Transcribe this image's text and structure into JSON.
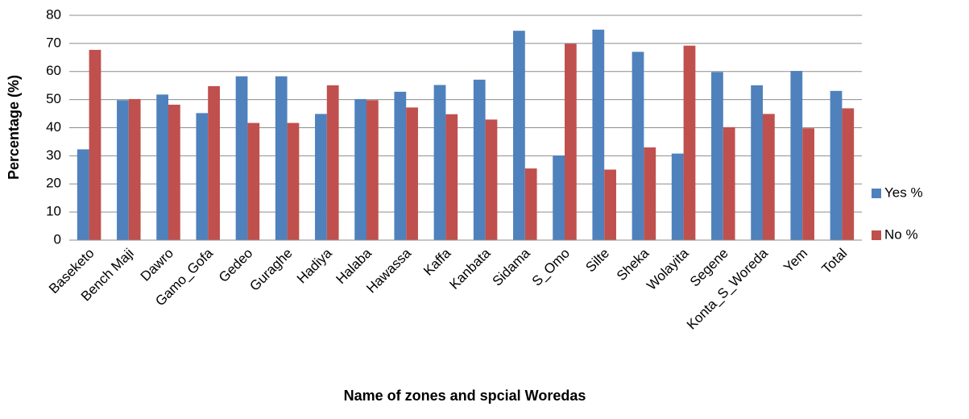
{
  "chart_data": {
    "type": "bar",
    "x_label": "Name of zones and spcial Woredas",
    "y_label": "Percentage (%)",
    "categories": [
      "Baseketo",
      "Bench Maji",
      "Dawro",
      "Gamo_Gofa",
      "Gedeo",
      "Guraghe",
      "Hadiya",
      "Halaba",
      "Hawassa",
      "Kaffa",
      "Kanbata",
      "Sidama",
      "S_Omo",
      "Silte",
      "Sheka",
      "Wolayita",
      "Segene",
      "Konta_S_Woreda",
      "Yem",
      "Total"
    ],
    "series": [
      {
        "name": "Yes %",
        "color": "#4f81bd",
        "values": [
          32.3,
          49.8,
          51.8,
          45.2,
          58.3,
          58.3,
          44.9,
          50.2,
          52.8,
          55.2,
          57.1,
          74.5,
          30.1,
          74.9,
          67,
          30.8,
          59.8,
          55.1,
          60.2,
          53.1
        ]
      },
      {
        "name": "No %",
        "color": "#c0504d",
        "values": [
          67.7,
          50.2,
          48.2,
          54.8,
          41.7,
          41.7,
          55.1,
          49.8,
          47.2,
          44.8,
          42.9,
          25.5,
          69.9,
          25.1,
          33,
          69.2,
          40.2,
          44.9,
          39.8,
          46.9
        ]
      }
    ],
    "ylim": [
      0,
      80
    ],
    "yticks": [
      0,
      10,
      20,
      30,
      40,
      50,
      60,
      70,
      80
    ],
    "grid": true,
    "legend": "right"
  }
}
